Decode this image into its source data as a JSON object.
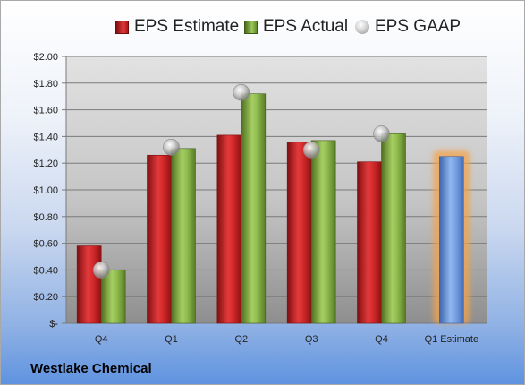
{
  "legend": {
    "estimate_label": "EPS Estimate",
    "actual_label": "EPS Actual",
    "gaap_label": "EPS GAAP"
  },
  "company": "Westlake Chemical",
  "colors": {
    "estimate": "#c62225",
    "actual": "#7ea540",
    "gaap": "#b9b9b9",
    "future_estimate": "#6e9be0",
    "highlight": "#f5a34a"
  },
  "chart_data": {
    "type": "bar",
    "categories": [
      "Q4",
      "Q1",
      "Q2",
      "Q3",
      "Q4",
      "Q1 Estimate"
    ],
    "series": [
      {
        "name": "EPS Estimate",
        "values": [
          0.58,
          1.26,
          1.41,
          1.36,
          1.21,
          null
        ]
      },
      {
        "name": "EPS Actual",
        "values": [
          0.4,
          1.31,
          1.72,
          1.37,
          1.42,
          null
        ]
      },
      {
        "name": "EPS GAAP",
        "values": [
          0.4,
          1.32,
          1.73,
          1.3,
          1.42,
          null
        ]
      }
    ],
    "future_estimate": {
      "category": "Q1 Estimate",
      "value": 1.25
    },
    "ylim": [
      0,
      2.0
    ],
    "yticks": [
      "$-",
      "$0.20",
      "$0.40",
      "$0.60",
      "$0.80",
      "$1.00",
      "$1.20",
      "$1.40",
      "$1.60",
      "$1.80",
      "$2.00"
    ],
    "grid": true,
    "legend_position": "top"
  }
}
